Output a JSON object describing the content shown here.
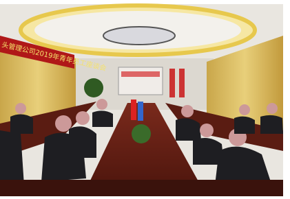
{
  "banner": {
    "text": "头管理公司2019年青年员工座谈会"
  }
}
